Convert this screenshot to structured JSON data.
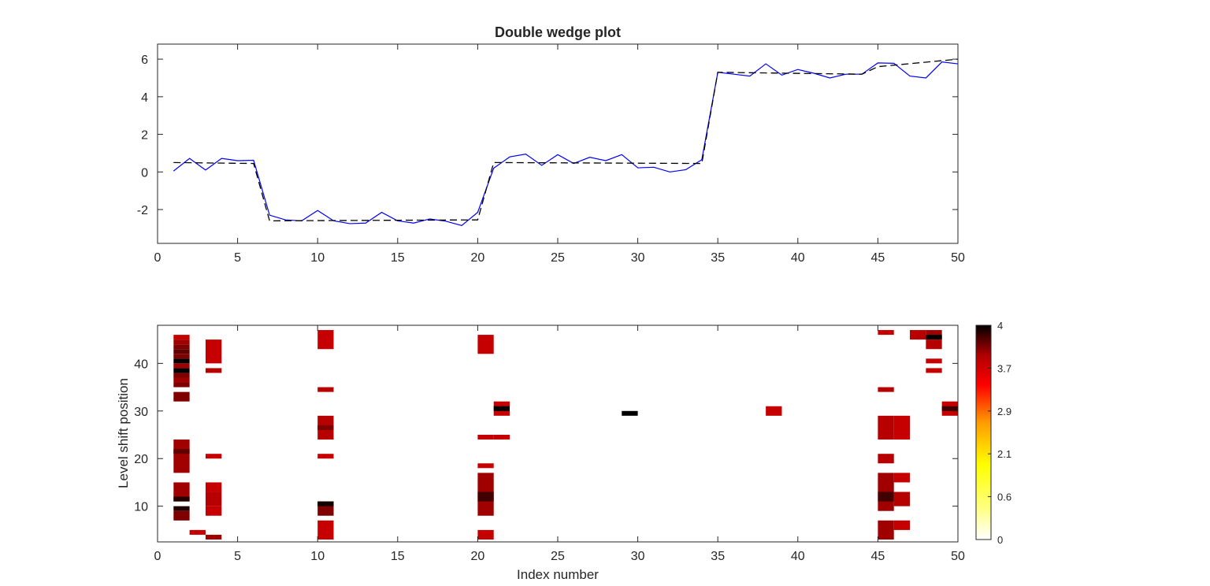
{
  "chart_data": [
    {
      "type": "line",
      "title": "Double wedge plot",
      "xlabel": "",
      "ylabel": "",
      "xlim": [
        0,
        50
      ],
      "ylim": [
        -3.8,
        6.8
      ],
      "xticks": [
        0,
        5,
        10,
        15,
        20,
        25,
        30,
        35,
        40,
        45,
        50
      ],
      "yticks": [
        -2,
        0,
        2,
        4,
        6
      ],
      "grid": false,
      "series": [
        {
          "style": "solid",
          "color": "#0000ff",
          "x": [
            1,
            2,
            3,
            4,
            5,
            6,
            7,
            8,
            9,
            10,
            11,
            12,
            13,
            14,
            15,
            16,
            17,
            18,
            19,
            20,
            21,
            22,
            23,
            24,
            25,
            26,
            27,
            28,
            29,
            30,
            31,
            32,
            33,
            34,
            35,
            36,
            37,
            38,
            39,
            40,
            41,
            42,
            43,
            44,
            45,
            46,
            47,
            48,
            49,
            50
          ],
          "y": [
            0.05,
            0.72,
            0.1,
            0.72,
            0.6,
            0.62,
            -2.3,
            -2.55,
            -2.6,
            -2.05,
            -2.6,
            -2.75,
            -2.72,
            -2.15,
            -2.6,
            -2.72,
            -2.5,
            -2.62,
            -2.85,
            -2.15,
            0.2,
            0.8,
            0.95,
            0.35,
            0.92,
            0.45,
            0.78,
            0.6,
            0.92,
            0.22,
            0.25,
            0.0,
            0.12,
            0.65,
            5.3,
            5.2,
            5.1,
            5.75,
            5.15,
            5.45,
            5.25,
            5.0,
            5.2,
            5.2,
            5.8,
            5.78,
            5.1,
            5.0,
            5.85,
            5.75
          ]
        },
        {
          "style": "dashed",
          "color": "#000000",
          "x": [
            1,
            6,
            7,
            20,
            21,
            34,
            35,
            44,
            45,
            50
          ],
          "y": [
            0.5,
            0.45,
            -2.6,
            -2.55,
            0.5,
            0.45,
            5.3,
            5.2,
            5.6,
            6.0
          ]
        }
      ]
    },
    {
      "type": "heatmap",
      "title": "",
      "xlabel": "Index number",
      "ylabel": "Level shift position",
      "xlim": [
        0,
        50
      ],
      "ylim": [
        2.5,
        48
      ],
      "xticks": [
        0,
        5,
        10,
        15,
        20,
        25,
        30,
        35,
        40,
        45,
        50
      ],
      "yticks": [
        10,
        20,
        30,
        40
      ],
      "grid": false,
      "colorbar": {
        "range": [
          0,
          4
        ],
        "ticks": [
          "0",
          "0.6",
          "2.1",
          "2.9",
          "3.7",
          "4"
        ],
        "colormap": "hot-reversed"
      },
      "cells_format": "[index, position_start, position_end, value]",
      "cells": [
        [
          1,
          45,
          46,
          3.3
        ],
        [
          1,
          44,
          45,
          3.5
        ],
        [
          1,
          43,
          44,
          3.6
        ],
        [
          1,
          42,
          43,
          3.7
        ],
        [
          1,
          41,
          42,
          3.6
        ],
        [
          1,
          40,
          41,
          4.0
        ],
        [
          1,
          39,
          40,
          3.5
        ],
        [
          1,
          38,
          39,
          4.0
        ],
        [
          1,
          37,
          38,
          3.6
        ],
        [
          1,
          36,
          37,
          3.5
        ],
        [
          1,
          35,
          36,
          3.6
        ],
        [
          1,
          32,
          34,
          3.6
        ],
        [
          1,
          17,
          24,
          3.5
        ],
        [
          1,
          21,
          22,
          3.7
        ],
        [
          1,
          11,
          15,
          3.5
        ],
        [
          1,
          11,
          12,
          3.9
        ],
        [
          1,
          9,
          10,
          3.9
        ],
        [
          1,
          7,
          9,
          3.6
        ],
        [
          2,
          4,
          5,
          3.3
        ],
        [
          3,
          40,
          45,
          3.3
        ],
        [
          3,
          38,
          39,
          3.4
        ],
        [
          3,
          20,
          21,
          3.3
        ],
        [
          3,
          13,
          15,
          3.3
        ],
        [
          3,
          10,
          13,
          3.4
        ],
        [
          3,
          8,
          10,
          3.3
        ],
        [
          3,
          3,
          4,
          3.5
        ],
        [
          10,
          43,
          47,
          3.3
        ],
        [
          10,
          34,
          35,
          3.4
        ],
        [
          10,
          24,
          29,
          3.4
        ],
        [
          10,
          26,
          27,
          3.6
        ],
        [
          10,
          20,
          21,
          3.3
        ],
        [
          10,
          8,
          11,
          3.6
        ],
        [
          10,
          10,
          11,
          3.95
        ],
        [
          10,
          3,
          7,
          3.3
        ],
        [
          20,
          42,
          46,
          3.3
        ],
        [
          20,
          24,
          25,
          3.3
        ],
        [
          20,
          18,
          19,
          3.3
        ],
        [
          20,
          8,
          17,
          3.5
        ],
        [
          20,
          11,
          13,
          3.8
        ],
        [
          20,
          3,
          5,
          3.3
        ],
        [
          21,
          29,
          32,
          3.3
        ],
        [
          21,
          30,
          31,
          4.0
        ],
        [
          21,
          24,
          25,
          3.3
        ],
        [
          29,
          29,
          30,
          4.0
        ],
        [
          38,
          29,
          31,
          3.3
        ],
        [
          45,
          46,
          47,
          3.3
        ],
        [
          45,
          34,
          35,
          3.4
        ],
        [
          45,
          24,
          29,
          3.4
        ],
        [
          45,
          19,
          21,
          3.4
        ],
        [
          45,
          9,
          17,
          3.5
        ],
        [
          45,
          11,
          13,
          3.8
        ],
        [
          45,
          3,
          7,
          3.5
        ],
        [
          46,
          24,
          29,
          3.3
        ],
        [
          46,
          15,
          17,
          3.3
        ],
        [
          46,
          10,
          13,
          3.4
        ],
        [
          46,
          5,
          7,
          3.3
        ],
        [
          47,
          45,
          47,
          3.4
        ],
        [
          48,
          45,
          47,
          3.5
        ],
        [
          48,
          45,
          46,
          4.0
        ],
        [
          48,
          43,
          45,
          3.4
        ],
        [
          48,
          40,
          41,
          3.3
        ],
        [
          48,
          38,
          39,
          3.3
        ],
        [
          49,
          29,
          32,
          3.3
        ],
        [
          49,
          30,
          31,
          3.8
        ]
      ]
    }
  ]
}
